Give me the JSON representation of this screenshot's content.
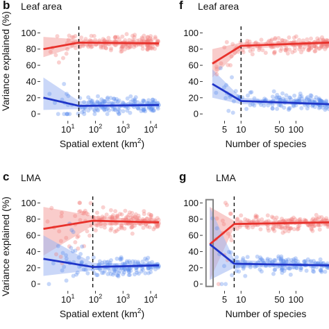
{
  "colors": {
    "leaf_red": "#e8312b",
    "band_red": "#f4a3a0",
    "point_red": "#f07c78",
    "leaf_blue": "#1f35c8",
    "band_blue": "#9fb6f2",
    "point_blue": "#5b8def",
    "dashed": "#111111",
    "highlight_box": "#808080"
  },
  "shared": {
    "ylabel": "Variance explained (%)",
    "yticks": [
      "0",
      "20",
      "40",
      "60",
      "80",
      "100"
    ]
  },
  "chart_data": [
    {
      "panel": "b",
      "title": "Leaf area",
      "type": "line",
      "xlabel_main": "Spatial extent (km",
      "xlabel_sup": "2",
      "xlabel_tail": ")",
      "xscale": "log",
      "xlim": [
        1,
        30000
      ],
      "ylim": [
        -5,
        108
      ],
      "xticks": [
        {
          "v": 10,
          "b": "10",
          "e": "1"
        },
        {
          "v": 100,
          "b": "10",
          "e": "2"
        },
        {
          "v": 1000,
          "b": "10",
          "e": "3"
        },
        {
          "v": 10000,
          "b": "10",
          "e": "4"
        }
      ],
      "cutoff_x": 25,
      "series": [
        {
          "color": "red",
          "x": [
            1.3,
            25,
            20000
          ],
          "y": [
            80,
            88,
            87
          ],
          "band": {
            "x": [
              1.3,
              25,
              20000
            ],
            "lo": [
              70,
              84,
              85
            ],
            "hi": [
              95,
              92,
              89
            ]
          }
        },
        {
          "color": "blue",
          "x": [
            1.3,
            25,
            20000
          ],
          "y": [
            20,
            10,
            11
          ],
          "band": {
            "x": [
              1.3,
              25,
              20000
            ],
            "lo": [
              5,
              6,
              10
            ],
            "hi": [
              45,
              16,
              12
            ]
          }
        }
      ]
    },
    {
      "panel": "f",
      "title": "Leaf area",
      "type": "line",
      "xlabel_main": "Number of species",
      "xlabel_sup": "",
      "xlabel_tail": "",
      "xscale": "log",
      "xlim": [
        2,
        400
      ],
      "ylim": [
        -5,
        108
      ],
      "xticks": [
        {
          "v": 5,
          "b": "5",
          "e": ""
        },
        {
          "v": 10,
          "b": "10",
          "e": ""
        },
        {
          "v": 50,
          "b": "50",
          "e": ""
        },
        {
          "v": 100,
          "b": "100",
          "e": ""
        }
      ],
      "cutoff_x": 10,
      "series": [
        {
          "color": "red",
          "x": [
            3,
            10,
            400
          ],
          "y": [
            62,
            84,
            88
          ],
          "band": {
            "x": [
              3,
              10,
              400
            ],
            "lo": [
              45,
              80,
              86
            ],
            "hi": [
              80,
              88,
              90
            ]
          }
        },
        {
          "color": "blue",
          "x": [
            3,
            10,
            400
          ],
          "y": [
            37,
            16,
            12
          ],
          "band": {
            "x": [
              3,
              10,
              400
            ],
            "lo": [
              20,
              12,
              11
            ],
            "hi": [
              55,
              20,
              13
            ]
          }
        }
      ]
    },
    {
      "panel": "c",
      "title": "LMA",
      "type": "line",
      "xlabel_main": "Spatial extent (km",
      "xlabel_sup": "2",
      "xlabel_tail": ")",
      "xscale": "log",
      "xlim": [
        1,
        30000
      ],
      "ylim": [
        -5,
        108
      ],
      "xticks": [
        {
          "v": 10,
          "b": "10",
          "e": "1"
        },
        {
          "v": 100,
          "b": "10",
          "e": "2"
        },
        {
          "v": 1000,
          "b": "10",
          "e": "3"
        },
        {
          "v": 10000,
          "b": "10",
          "e": "4"
        }
      ],
      "cutoff_x": 80,
      "series": [
        {
          "color": "red",
          "x": [
            1.3,
            80,
            20000
          ],
          "y": [
            68,
            78,
            76
          ],
          "band": {
            "x": [
              1.3,
              80,
              20000
            ],
            "lo": [
              35,
              72,
              74
            ],
            "hi": [
              95,
              84,
              78
            ]
          }
        },
        {
          "color": "blue",
          "x": [
            1.3,
            80,
            20000
          ],
          "y": [
            31,
            21,
            23
          ],
          "band": {
            "x": [
              1.3,
              80,
              20000
            ],
            "lo": [
              10,
              17,
              22
            ],
            "hi": [
              60,
              26,
              25
            ]
          }
        }
      ]
    },
    {
      "panel": "g",
      "title": "LMA",
      "type": "line",
      "xlabel_main": "Number of species",
      "xlabel_sup": "",
      "xlabel_tail": "",
      "xscale": "log",
      "xlim": [
        2,
        400
      ],
      "ylim": [
        -5,
        108
      ],
      "xticks": [
        {
          "v": 5,
          "b": "5",
          "e": ""
        },
        {
          "v": 10,
          "b": "10",
          "e": ""
        },
        {
          "v": 50,
          "b": "50",
          "e": ""
        },
        {
          "v": 100,
          "b": "100",
          "e": ""
        }
      ],
      "cutoff_x": 7.5,
      "highlight_x": [
        2.3,
        3.1
      ],
      "series": [
        {
          "color": "red",
          "x": [
            2.7,
            7.5,
            400
          ],
          "y": [
            49,
            74,
            76
          ],
          "band": {
            "x": [
              2.7,
              7.5,
              400
            ],
            "lo": [
              5,
              70,
              75
            ],
            "hi": [
              95,
              78,
              78
            ]
          }
        },
        {
          "color": "blue",
          "x": [
            2.7,
            7.5,
            400
          ],
          "y": [
            49,
            25,
            23
          ],
          "band": {
            "x": [
              2.7,
              7.5,
              400
            ],
            "lo": [
              5,
              20,
              22
            ],
            "hi": [
              95,
              30,
              24
            ]
          }
        }
      ]
    }
  ]
}
